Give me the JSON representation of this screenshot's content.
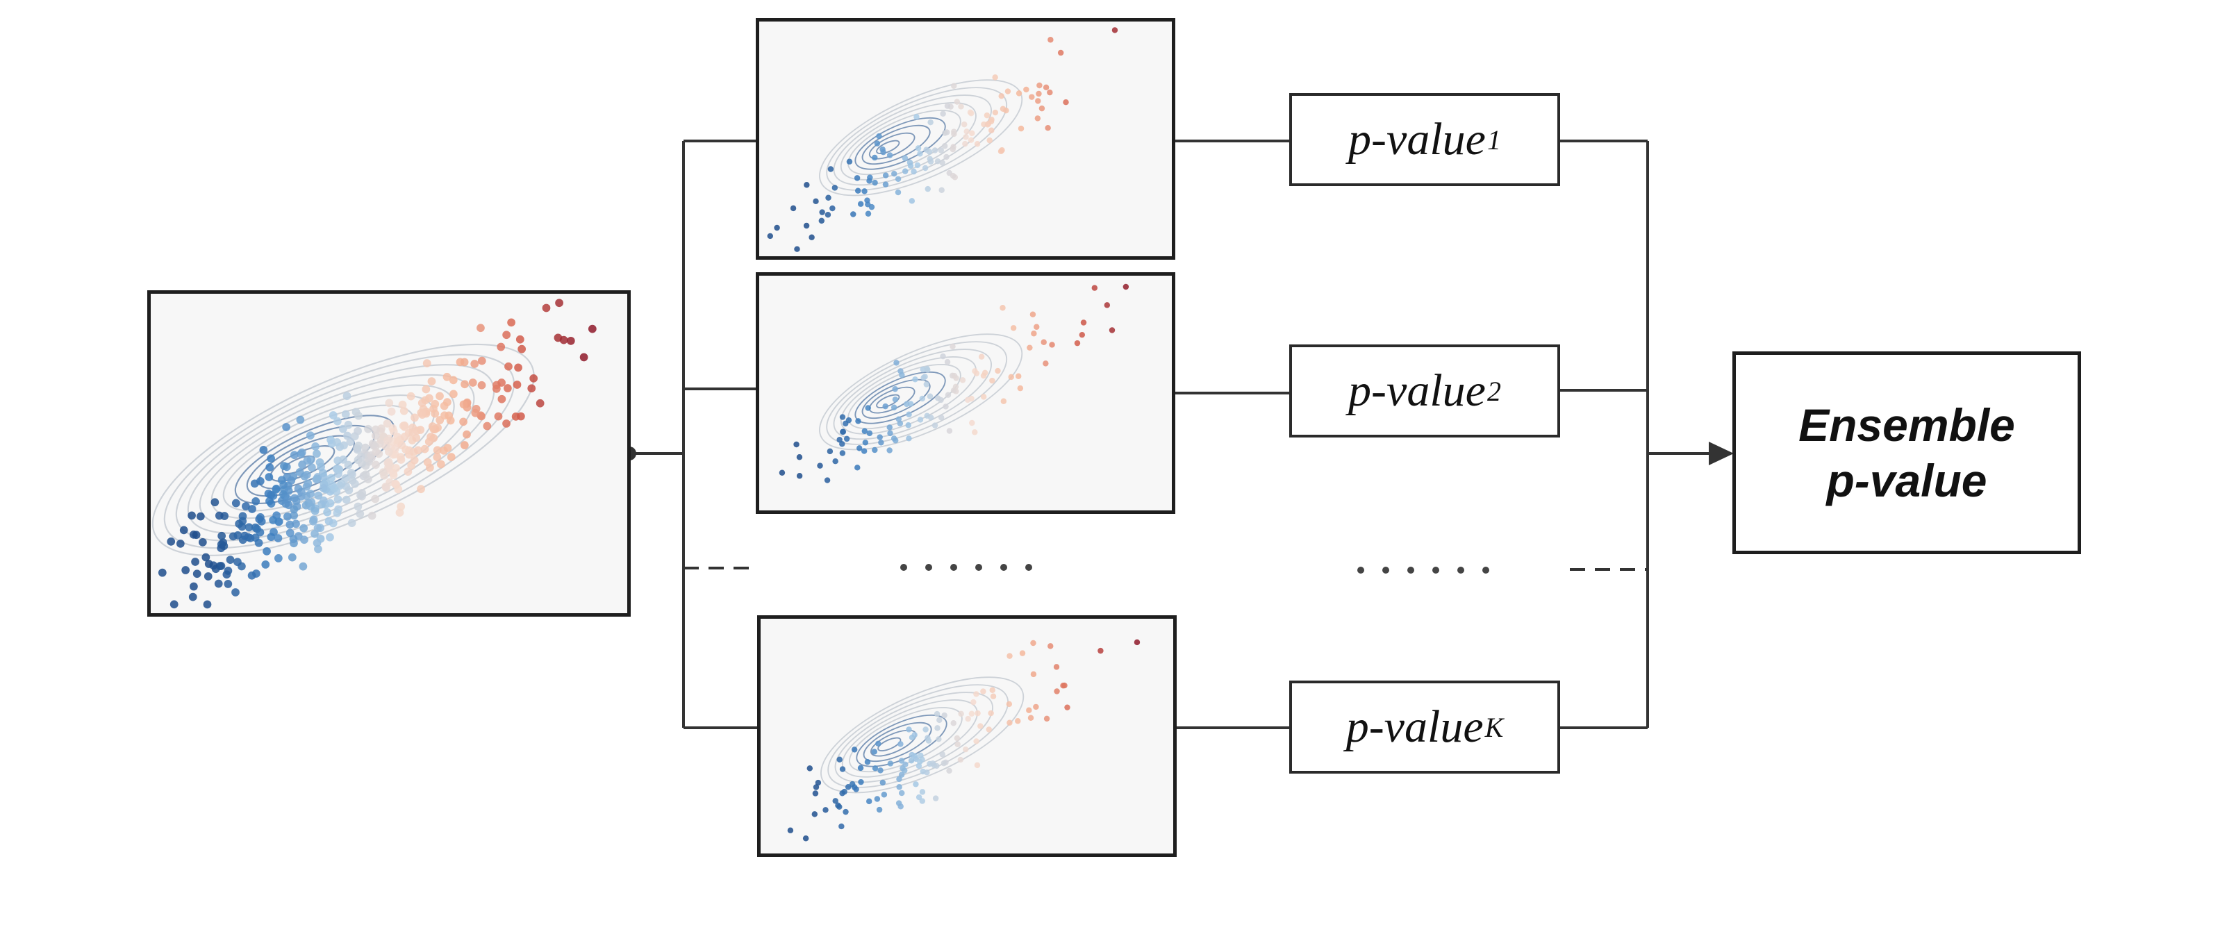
{
  "pvalue_boxes": [
    {
      "base": "p-value",
      "subscript": "1"
    },
    {
      "base": "p-value",
      "subscript": "2"
    },
    {
      "base": "p-value",
      "subscript": "K"
    }
  ],
  "ensemble": {
    "line1": "Ensemble",
    "line2": "p-value"
  },
  "colors": {
    "line": "#333333",
    "panel_border": "#1e1e1e",
    "panel_bg": "#f7f7f7",
    "blue_dark": "#1f4e8c",
    "blue": "#3d7fc0",
    "blue_light": "#a9cbe6",
    "red_light": "#f5b79a",
    "red": "#d6604d",
    "red_dark": "#8f1a2a",
    "contour_gray": "#9aa3b2",
    "contour_blue": "#4a7ab8"
  },
  "icons": [
    "scatter-contour-plot",
    "ellipsis-dots",
    "arrow-right"
  ]
}
